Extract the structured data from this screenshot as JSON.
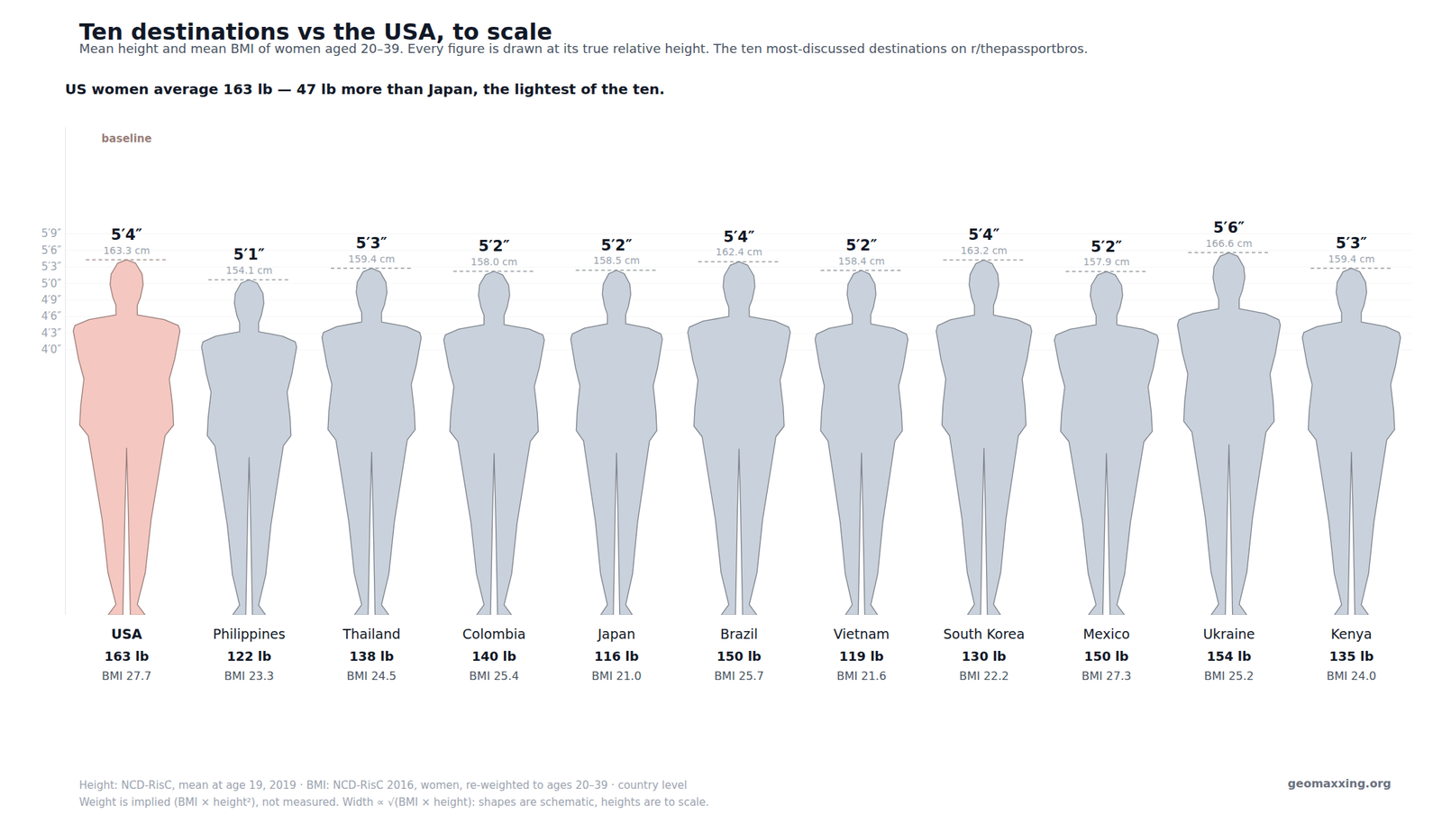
{
  "chart_data": {
    "type": "pictogram",
    "title": "Ten destinations vs the USA, to scale",
    "subtitle": "Mean height and mean BMI of women aged 20–39. Every figure is drawn at its true relative height. The ten most-discussed destinations on r/thepassportbros.",
    "headline": "US women average 163 lb — 47 lb more than Japan, the lightest of the ten.",
    "categories": [
      "USA",
      "Philippines",
      "Thailand",
      "Colombia",
      "Japan",
      "Brazil",
      "Vietnam",
      "South Korea",
      "Mexico",
      "Ukraine",
      "Kenya"
    ],
    "values": [
      163.3,
      154.1,
      159.4,
      158.0,
      158.5,
      162.4,
      158.4,
      163.2,
      157.9,
      166.6,
      159.4
    ],
    "value_labels": [
      "163.3 cm",
      "154.1 cm",
      "159.4 cm",
      "158.0 cm",
      "158.5 cm",
      "162.4 cm",
      "158.4 cm",
      "163.2 cm",
      "157.9 cm",
      "166.6 cm",
      "159.4 cm"
    ],
    "height_labels": [
      "5′4″",
      "5′1″",
      "5′3″",
      "5′2″",
      "5′2″",
      "5′4″",
      "5′2″",
      "5′4″",
      "5′2″",
      "5′6″",
      "5′3″"
    ],
    "weight_labels": [
      "163 lb",
      "122 lb",
      "138 lb",
      "140 lb",
      "116 lb",
      "150 lb",
      "119 lb",
      "130 lb",
      "150 lb",
      "154 lb",
      "135 lb"
    ],
    "bmi": [
      27.7,
      23.3,
      24.5,
      25.4,
      21.0,
      25.7,
      21.6,
      22.2,
      27.3,
      25.2,
      24.0
    ],
    "bmi_labels": [
      "BMI 27.7",
      "BMI 23.3",
      "BMI 24.5",
      "BMI 25.4",
      "BMI 21.0",
      "BMI 25.7",
      "BMI 21.6",
      "BMI 22.2",
      "BMI 27.3",
      "BMI 25.2",
      "BMI 24.0"
    ],
    "colors": [
      "#f4c7c0",
      "#c8d1dc",
      "#c8d1dc",
      "#c8d1dc",
      "#c8d1dc",
      "#c8d1dc",
      "#c8d1dc",
      "#c8d1dc",
      "#c8d1dc",
      "#c8d1dc",
      "#c8d1dc"
    ],
    "annotations": [
      {
        "text": "baseline",
        "category": "USA"
      }
    ],
    "ylim": [
      0,
      224
    ],
    "yticks": [
      {
        "value": 121.92,
        "label": "4′0″"
      },
      {
        "value": 129.54,
        "label": "4′3″"
      },
      {
        "value": 137.16,
        "label": "4′6″"
      },
      {
        "value": 144.78,
        "label": "4′9″"
      },
      {
        "value": 152.4,
        "label": "5′0″"
      },
      {
        "value": 160.02,
        "label": "5′3″"
      },
      {
        "value": 167.64,
        "label": "5′6″"
      },
      {
        "value": 175.26,
        "label": "5′9″"
      }
    ],
    "grid": true,
    "tick_labels": "y",
    "notes": [
      "Height: NCD-RisC, mean at age 19, 2019 · BMI: NCD-RisC 2016, women, re-weighted to ages 20–39 · country level",
      "Weight is implied (BMI × height²), not measured. Width ∝ √(BMI × height): shapes are schematic, heights are to scale."
    ],
    "source": "geomaxxing.org"
  }
}
